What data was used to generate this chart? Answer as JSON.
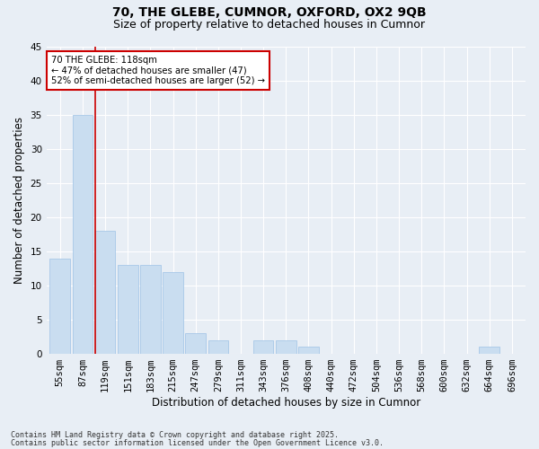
{
  "title1": "70, THE GLEBE, CUMNOR, OXFORD, OX2 9QB",
  "title2": "Size of property relative to detached houses in Cumnor",
  "xlabel": "Distribution of detached houses by size in Cumnor",
  "ylabel": "Number of detached properties",
  "categories": [
    "55sqm",
    "87sqm",
    "119sqm",
    "151sqm",
    "183sqm",
    "215sqm",
    "247sqm",
    "279sqm",
    "311sqm",
    "343sqm",
    "376sqm",
    "408sqm",
    "440sqm",
    "472sqm",
    "504sqm",
    "536sqm",
    "568sqm",
    "600sqm",
    "632sqm",
    "664sqm",
    "696sqm"
  ],
  "values": [
    14,
    35,
    18,
    13,
    13,
    12,
    3,
    2,
    0,
    2,
    2,
    1,
    0,
    0,
    0,
    0,
    0,
    0,
    0,
    1,
    0
  ],
  "bar_color": "#c9ddf0",
  "bar_edge_color": "#a8c8e8",
  "ylim": [
    0,
    45
  ],
  "yticks": [
    0,
    5,
    10,
    15,
    20,
    25,
    30,
    35,
    40,
    45
  ],
  "red_line_x": 2,
  "annotation_text": "70 THE GLEBE: 118sqm\n← 47% of detached houses are smaller (47)\n52% of semi-detached houses are larger (52) →",
  "annotation_box_color": "#ffffff",
  "annotation_box_edge": "#cc0000",
  "footnote1": "Contains HM Land Registry data © Crown copyright and database right 2025.",
  "footnote2": "Contains public sector information licensed under the Open Government Licence v3.0.",
  "bg_color": "#e8eef5",
  "grid_color": "#ffffff",
  "title_fontsize": 10,
  "subtitle_fontsize": 9,
  "axis_label_fontsize": 8.5,
  "tick_fontsize": 7.5,
  "footnote_fontsize": 6
}
